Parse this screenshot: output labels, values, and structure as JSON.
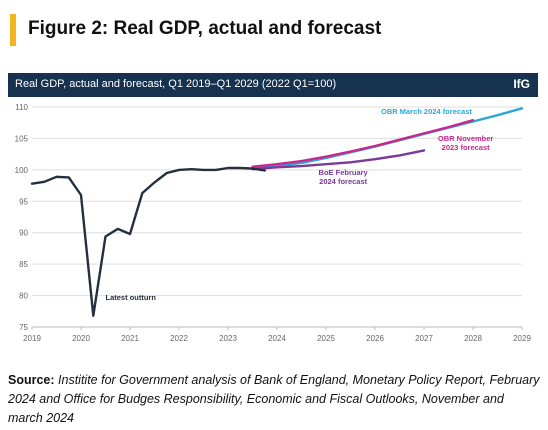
{
  "figure": {
    "title": "Figure 2: Real GDP, actual and forecast",
    "accent_color": "#f2b51d"
  },
  "chart_header": {
    "title": "Real GDP, actual and forecast, Q1 2019–Q1 2029 (2022 Q1=100)",
    "brand": "IfG",
    "background": "#16324f"
  },
  "chart_data": {
    "type": "line",
    "title": "Real GDP, actual and forecast, Q1 2019–Q1 2029 (2022 Q1=100)",
    "xlabel": "",
    "ylabel": "",
    "xlim": [
      2019,
      2029
    ],
    "ylim": [
      75,
      110
    ],
    "x_ticks": [
      "2019",
      "2020",
      "2021",
      "2022",
      "2023",
      "2024",
      "2025",
      "2026",
      "2027",
      "2028",
      "2029"
    ],
    "y_ticks": [
      "75",
      "80",
      "85",
      "90",
      "95",
      "100",
      "105",
      "110"
    ],
    "grid": true,
    "series": [
      {
        "name": "Latest outturn",
        "color": "#24303e",
        "x": [
          2019.0,
          2019.25,
          2019.5,
          2019.75,
          2020.0,
          2020.25,
          2020.5,
          2020.75,
          2021.0,
          2021.25,
          2021.5,
          2021.75,
          2022.0,
          2022.25,
          2022.5,
          2022.75,
          2023.0,
          2023.25,
          2023.5,
          2023.75
        ],
        "y": [
          97.8,
          98.1,
          98.9,
          98.8,
          96.0,
          76.8,
          89.4,
          90.6,
          89.8,
          96.3,
          98.0,
          99.5,
          100.0,
          100.1,
          100.0,
          100.0,
          100.3,
          100.3,
          100.2,
          99.9
        ]
      },
      {
        "name": "OBR March 2024 forecast",
        "color": "#2ba8d8",
        "x": [
          2023.5,
          2024.0,
          2024.5,
          2025.0,
          2025.5,
          2026.0,
          2026.5,
          2027.0,
          2027.5,
          2028.0,
          2028.5,
          2029.0
        ],
        "y": [
          100.2,
          100.6,
          101.1,
          101.9,
          102.8,
          103.7,
          104.7,
          105.7,
          106.7,
          107.7,
          108.7,
          109.8
        ]
      },
      {
        "name": "OBR November 2023 forecast",
        "color": "#c8278c",
        "x": [
          2023.5,
          2024.0,
          2024.5,
          2025.0,
          2025.5,
          2026.0,
          2026.5,
          2027.0,
          2027.5,
          2028.0
        ],
        "y": [
          100.5,
          100.9,
          101.4,
          102.1,
          102.9,
          103.8,
          104.8,
          105.8,
          106.8,
          107.9
        ]
      },
      {
        "name": "BoE February 2024 forecast",
        "color": "#7c3a98",
        "x": [
          2023.5,
          2024.0,
          2024.5,
          2025.0,
          2025.5,
          2026.0,
          2026.5,
          2027.0
        ],
        "y": [
          100.1,
          100.4,
          100.6,
          100.9,
          101.2,
          101.7,
          102.3,
          103.1
        ]
      }
    ],
    "annotations": [
      {
        "text": [
          "OBR March 2024 forecast"
        ],
        "x": 2027.05,
        "y": 108.9,
        "anchor": "middle",
        "color": "#2ba8d8"
      },
      {
        "text": [
          "OBR November",
          "2023 forecast"
        ],
        "x": 2027.85,
        "y": 104.6,
        "anchor": "middle",
        "color": "#c8278c"
      },
      {
        "text": [
          "BoE February",
          "2024 forecast"
        ],
        "x": 2025.35,
        "y": 99.2,
        "anchor": "middle",
        "color": "#7c3a98"
      },
      {
        "text": [
          "Latest outturn"
        ],
        "x": 2020.5,
        "y": 79.3,
        "anchor": "start",
        "color": "#24303e"
      }
    ]
  },
  "source": {
    "label": "Source:",
    "text": "Institite for Government analysis of Bank of England, Monetary Policy Report, February 2024 and Office for Budges Responsibility, Economic and Fiscal Outlooks, November and march 2024"
  }
}
